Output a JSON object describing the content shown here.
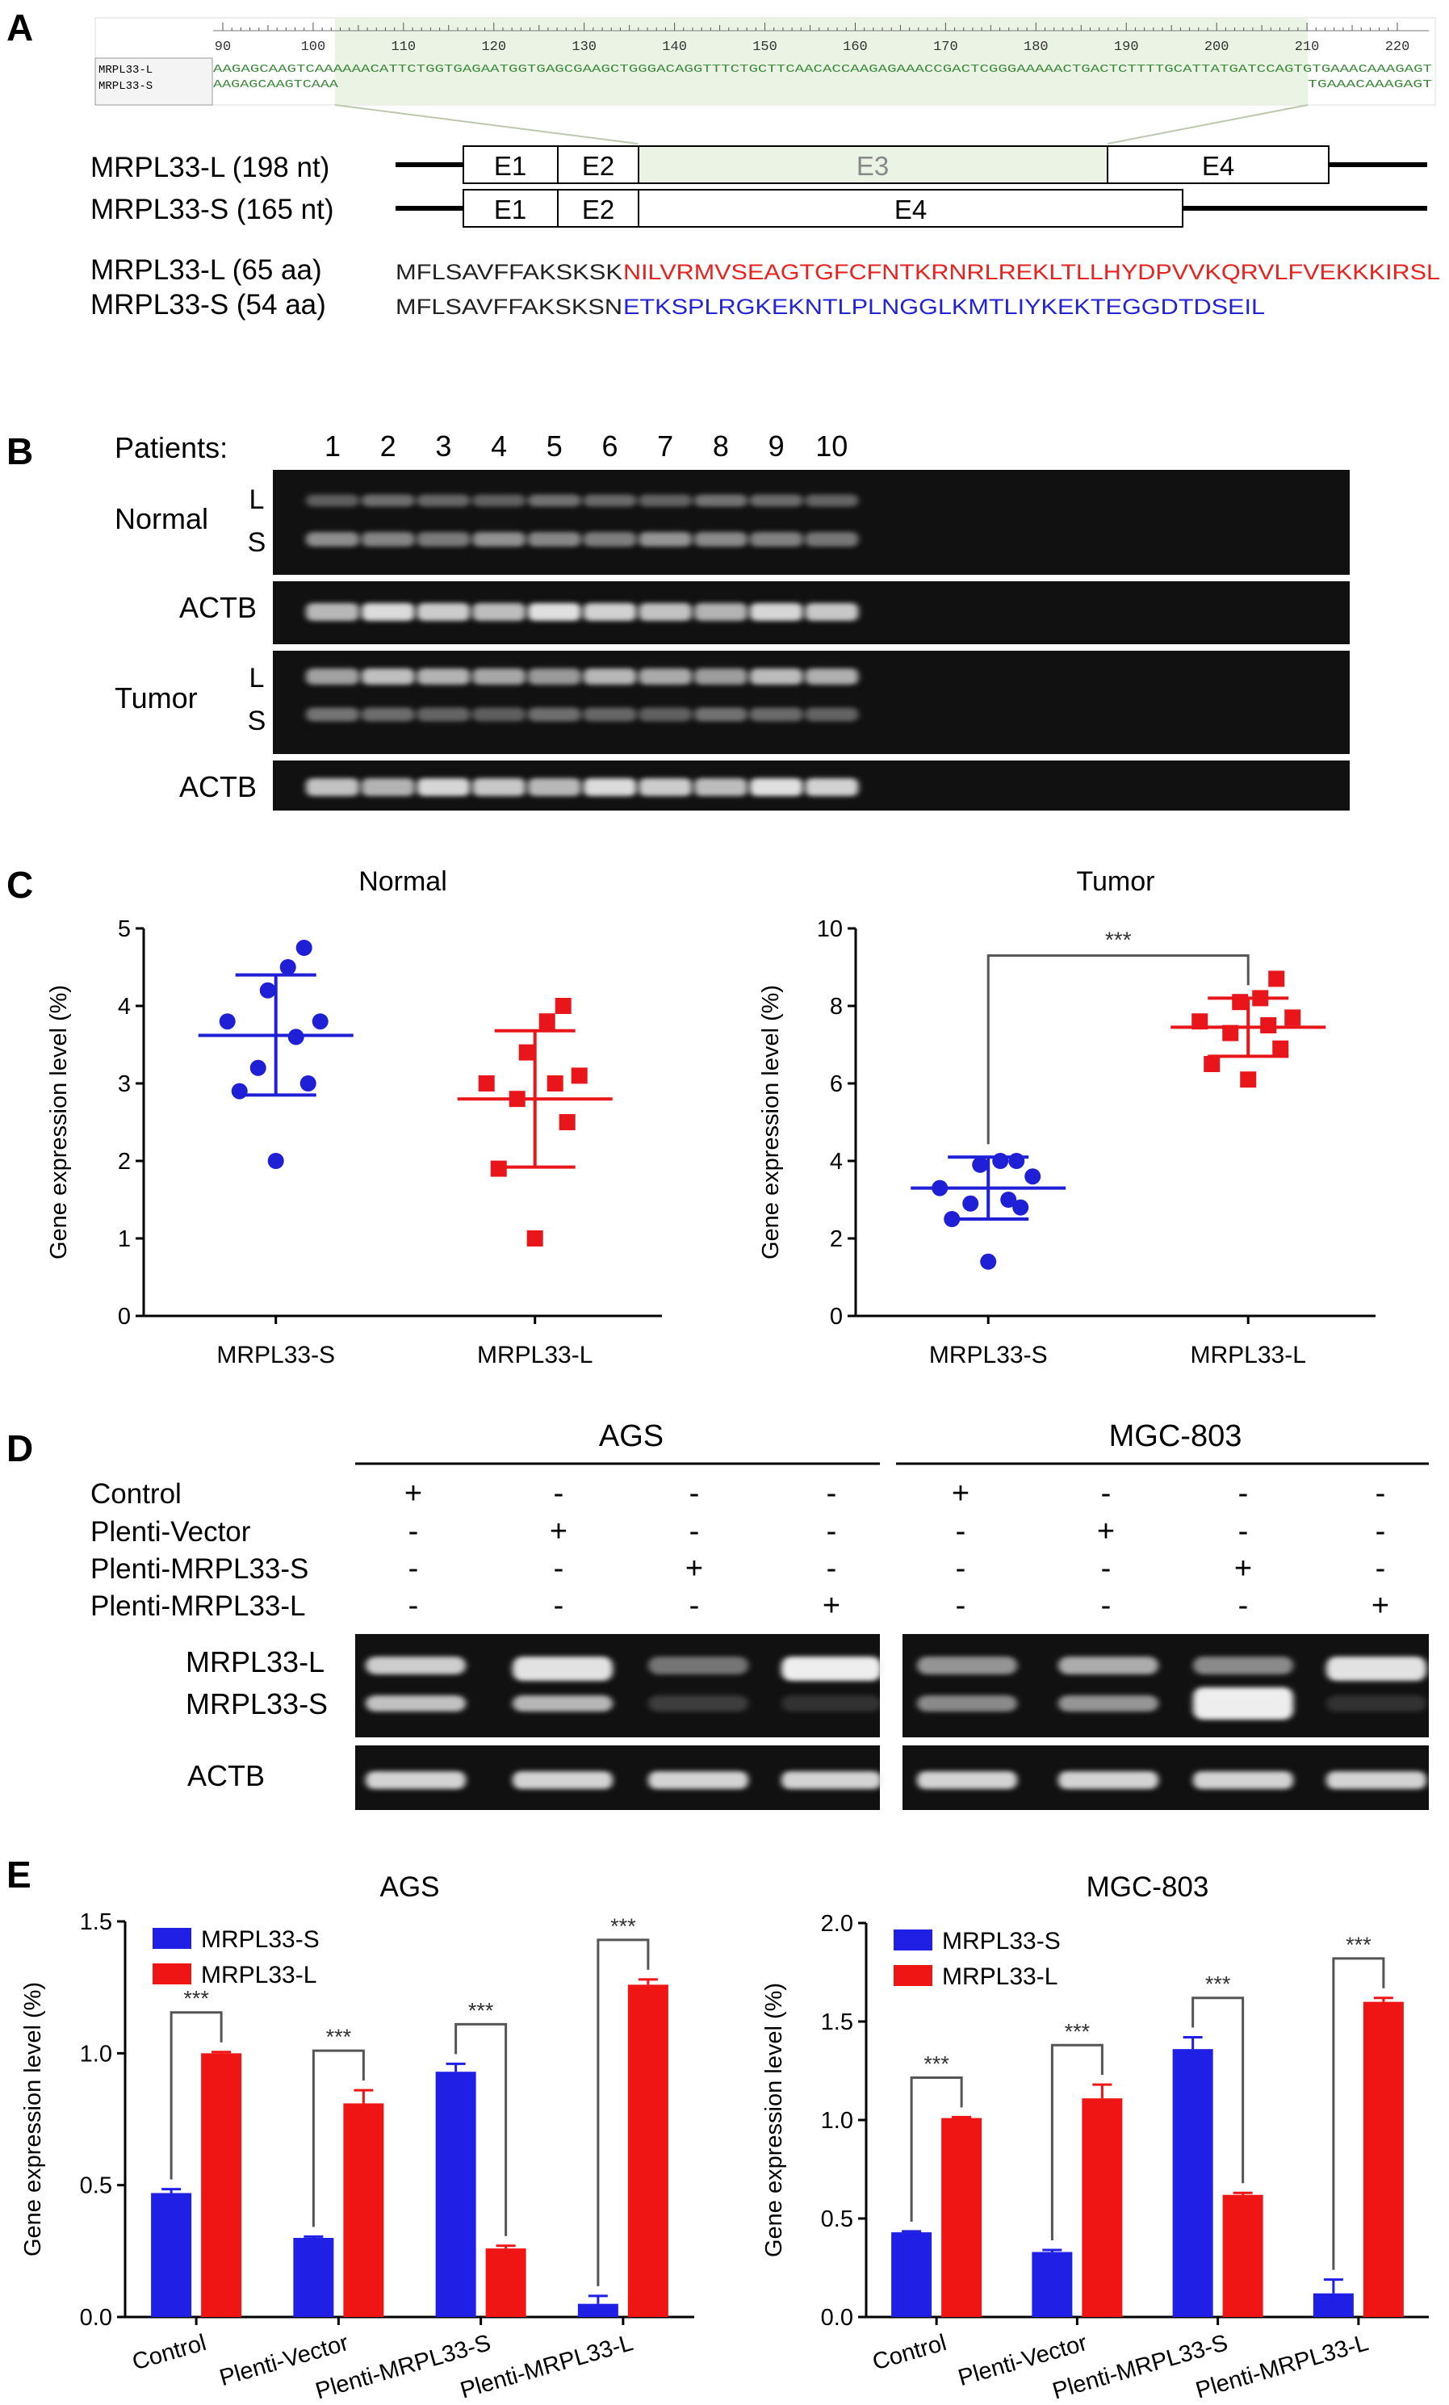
{
  "panelA": {
    "label": "A",
    "alignment": {
      "ruler_ticks": [
        "90",
        "100",
        "110",
        "120",
        "130",
        "140",
        "150",
        "160",
        "170",
        "180",
        "190",
        "200",
        "210",
        "220"
      ],
      "names": [
        "MRPL33-L",
        "MRPL33-S"
      ],
      "seqL": "AAGAGCAAGTCAAAAAACATTCTGGTGAGAATGGTGAGCGAAGCTGGGACAGGTTTCTGCTTCAACACCAAGAGAAACCGACTCGGGAAAAACTGACTCTTTTGCATTATGATCCAGTGTGAAACAAAGAGT",
      "seqS_start": "AAGAGCAAGTCAAA",
      "seqS_end": "TGAAACAAAGAGT"
    },
    "transcripts": [
      {
        "name": "MRPL33-L (198 nt)",
        "exons": [
          "E1",
          "E2",
          "E3",
          "E4"
        ]
      },
      {
        "name": "MRPL33-S (165 nt)",
        "exons": [
          "E1",
          "E2",
          "E4"
        ]
      }
    ],
    "proteins": [
      {
        "name": "MRPL33-L (65 aa)",
        "common": "MFLSAVFFAKSKSK",
        "unique": "NILVRMVSEAGTGFCFNTKRNRLREKLTLLHYDPVVKQRVLFVEKKKIRSL",
        "color": "#e8231f"
      },
      {
        "name": "MRPL33-S (54 aa)",
        "common": "MFLSAVFFAKSKSN",
        "unique": "ETKSPLRGKEKNTLPLNGGLKMTLIYKEKTEGGDTDSEIL",
        "color": "#2323d6"
      }
    ]
  },
  "panelB": {
    "label": "B",
    "patients_label": "Patients:",
    "patients": [
      "1",
      "2",
      "3",
      "4",
      "5",
      "6",
      "7",
      "8",
      "9",
      "10"
    ],
    "rows": [
      {
        "name": "Normal",
        "bands": [
          "L",
          "S"
        ]
      },
      {
        "name": "ACTB",
        "bands": []
      },
      {
        "name": "Tumor",
        "bands": [
          "L",
          "S"
        ]
      },
      {
        "name": "ACTB",
        "bands": []
      }
    ]
  },
  "panelC": {
    "label": "C",
    "colors": {
      "S": "#1f1fd6",
      "L": "#e8161a"
    },
    "chart_data": [
      {
        "type": "scatter",
        "title": "Normal",
        "ylabel": "Gene expression level (%)",
        "categories": [
          "MRPL33-S",
          "MRPL33-L"
        ],
        "ylim": [
          0,
          5
        ],
        "yticks": [
          "0",
          "1",
          "2",
          "3",
          "4",
          "5"
        ],
        "series": [
          {
            "values": [
              2.0,
              2.9,
              3.0,
              3.2,
              3.6,
              3.8,
              3.8,
              4.2,
              4.5,
              4.75
            ],
            "mean": 3.62,
            "sd_low": 2.85,
            "sd_high": 4.4,
            "marker": "circle"
          },
          {
            "values": [
              1.0,
              1.9,
              2.5,
              2.8,
              3.0,
              3.0,
              3.1,
              3.4,
              3.8,
              4.0
            ],
            "mean": 2.8,
            "sd_low": 1.92,
            "sd_high": 3.68,
            "marker": "square"
          }
        ],
        "significance": ""
      },
      {
        "type": "scatter",
        "title": "Tumor",
        "ylabel": "Gene expression level (%)",
        "categories": [
          "MRPL33-S",
          "MRPL33-L"
        ],
        "ylim": [
          0,
          10
        ],
        "yticks": [
          "0",
          "2",
          "4",
          "6",
          "8",
          "10"
        ],
        "series": [
          {
            "values": [
              1.4,
              2.5,
              2.8,
              2.9,
              3.0,
              3.3,
              3.6,
              3.9,
              4.0,
              4.0
            ],
            "mean": 3.3,
            "sd_low": 2.5,
            "sd_high": 4.1,
            "marker": "circle"
          },
          {
            "values": [
              6.1,
              6.5,
              6.9,
              7.3,
              7.5,
              7.6,
              7.7,
              8.1,
              8.2,
              8.7
            ],
            "mean": 7.45,
            "sd_low": 6.7,
            "sd_high": 8.2,
            "marker": "square"
          }
        ],
        "significance": "***"
      }
    ]
  },
  "panelD": {
    "label": "D",
    "groups": [
      "AGS",
      "MGC-803"
    ],
    "conditions": [
      {
        "name": "Control",
        "signs": [
          "+",
          "-",
          "-",
          "-",
          "+",
          "-",
          "-",
          "-"
        ]
      },
      {
        "name": "Plenti-Vector",
        "signs": [
          "-",
          "+",
          "-",
          "-",
          "-",
          "+",
          "-",
          "-"
        ]
      },
      {
        "name": "Plenti-MRPL33-S",
        "signs": [
          "-",
          "-",
          "+",
          "-",
          "-",
          "-",
          "+",
          "-"
        ]
      },
      {
        "name": "Plenti-MRPL33-L",
        "signs": [
          "-",
          "-",
          "-",
          "+",
          "-",
          "-",
          "-",
          "+"
        ]
      }
    ],
    "gel_rows": [
      "MRPL33-L",
      "MRPL33-S",
      "ACTB"
    ]
  },
  "panelE": {
    "label": "E",
    "colors": {
      "S": "#1f1fe6",
      "L": "#ef1515"
    },
    "chart_data": [
      {
        "type": "bar",
        "title": "AGS",
        "ylabel": "Gene expression level (%)",
        "categories": [
          "Control",
          "Plenti-Vector",
          "Plenti-MRPL33-S",
          "Plenti-MRPL33-L"
        ],
        "ylim": [
          0,
          1.5
        ],
        "yticks": [
          "0.0",
          "0.5",
          "1.0",
          "1.5"
        ],
        "series": [
          {
            "name": "MRPL33-S",
            "values": [
              0.47,
              0.3,
              0.93,
              0.05
            ],
            "err": [
              0.015,
              0.005,
              0.03,
              0.03
            ]
          },
          {
            "name": "MRPL33-L",
            "values": [
              1.0,
              0.81,
              0.26,
              1.26
            ],
            "err": [
              0.005,
              0.05,
              0.01,
              0.02
            ]
          }
        ],
        "significance": [
          "***",
          "***",
          "***",
          "***"
        ],
        "legend": "top-left"
      },
      {
        "type": "bar",
        "title": "MGC-803",
        "ylabel": "Gene expression level (%)",
        "categories": [
          "Control",
          "Plenti-Vector",
          "Plenti-MRPL33-S",
          "Plenti-MRPL33-L"
        ],
        "ylim": [
          0,
          2.0
        ],
        "yticks": [
          "0.0",
          "0.5",
          "1.0",
          "1.5",
          "2.0"
        ],
        "series": [
          {
            "name": "MRPL33-S",
            "values": [
              0.43,
              0.33,
              1.36,
              0.12
            ],
            "err": [
              0.005,
              0.01,
              0.06,
              0.07
            ]
          },
          {
            "name": "MRPL33-L",
            "values": [
              1.01,
              1.11,
              0.62,
              1.6
            ],
            "err": [
              0.005,
              0.07,
              0.01,
              0.02
            ]
          }
        ],
        "significance": [
          "***",
          "***",
          "***",
          "***"
        ],
        "legend": "top-left"
      }
    ]
  }
}
